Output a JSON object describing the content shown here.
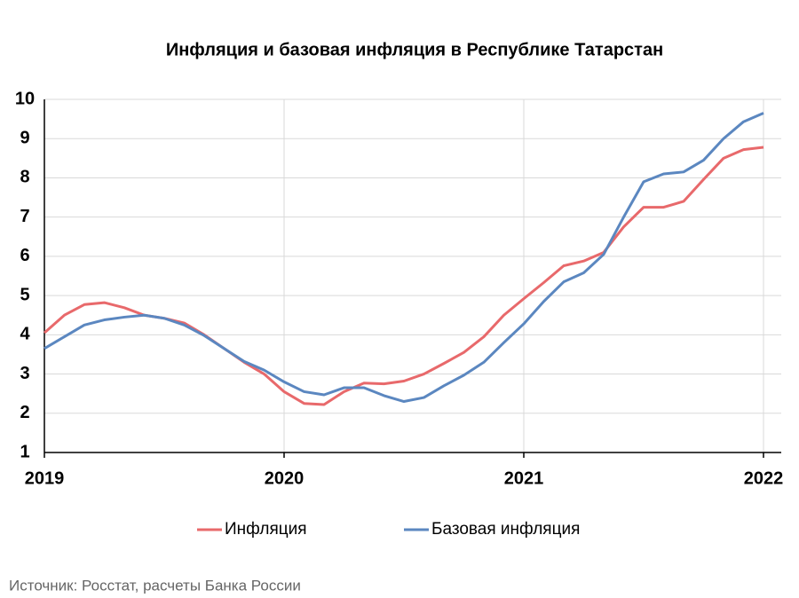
{
  "chart_data": {
    "type": "line",
    "title": "Инфляция и базовая инфляция в Республике Татарстан",
    "source": "Источник: Росстат, расчеты Банка России",
    "categories": [
      "2019",
      null,
      null,
      null,
      null,
      null,
      null,
      null,
      null,
      null,
      null,
      null,
      "2020",
      null,
      null,
      null,
      null,
      null,
      null,
      null,
      null,
      null,
      null,
      null,
      "2021",
      null,
      null,
      null,
      null,
      null,
      null,
      null,
      null,
      null,
      null,
      null,
      "2022"
    ],
    "series": [
      {
        "name": "Инфляция",
        "color": "#e8696b",
        "values": [
          4.05,
          4.5,
          4.77,
          4.82,
          4.69,
          4.5,
          4.42,
          4.3,
          4.0,
          3.65,
          3.3,
          3.0,
          2.55,
          2.25,
          2.22,
          2.55,
          2.77,
          2.75,
          2.82,
          3.0,
          3.27,
          3.55,
          3.95,
          4.5,
          4.92,
          5.33,
          5.76,
          5.88,
          6.1,
          6.75,
          7.25,
          7.25,
          7.4,
          7.96,
          8.5,
          8.72,
          8.78
        ]
      },
      {
        "name": "Базовая инфляция",
        "color": "#5b87c0",
        "values": [
          3.65,
          3.95,
          4.25,
          4.38,
          4.45,
          4.5,
          4.42,
          4.25,
          3.98,
          3.65,
          3.32,
          3.1,
          2.8,
          2.55,
          2.47,
          2.65,
          2.65,
          2.45,
          2.3,
          2.4,
          2.7,
          2.97,
          3.3,
          3.8,
          4.28,
          4.85,
          5.35,
          5.58,
          6.05,
          7.0,
          7.9,
          8.1,
          8.15,
          8.45,
          9.0,
          9.43,
          9.65
        ]
      }
    ],
    "ylim": [
      1,
      10
    ],
    "yticks": [
      1,
      2,
      3,
      4,
      5,
      6,
      7,
      8,
      9,
      10
    ],
    "grid": true
  }
}
